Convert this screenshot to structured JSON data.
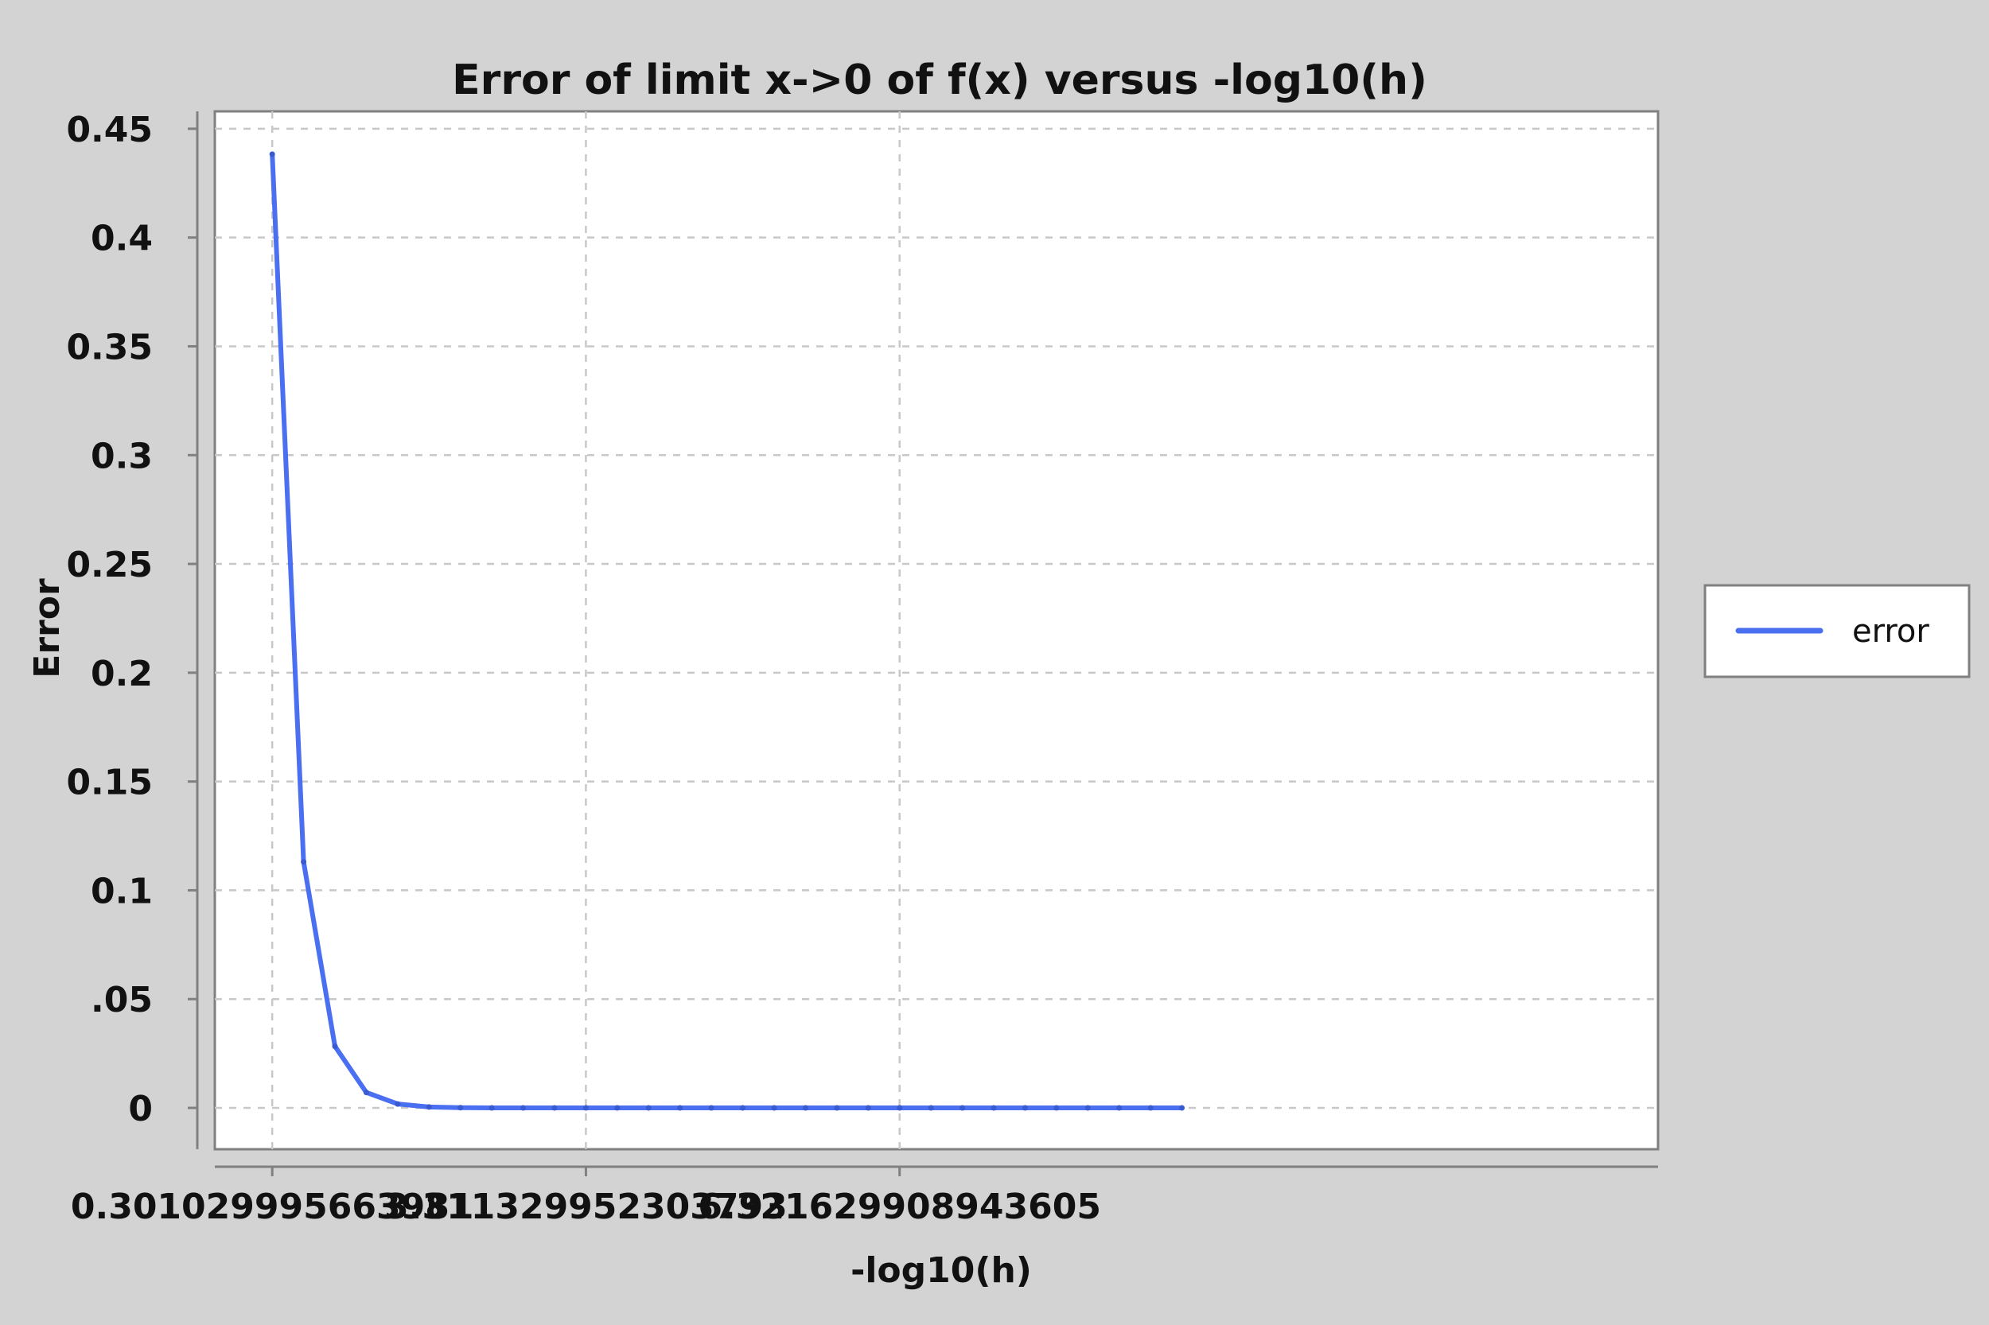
{
  "chart_data": {
    "type": "line",
    "title": "Error of limit x->0 of f(x) versus -log10(h)",
    "xlabel": "-log10(h)",
    "ylabel": "Error",
    "xlim": [
      -0.25,
      13.6
    ],
    "ylim": [
      -0.019,
      0.458
    ],
    "x_ticks": [
      0.301029995663981,
      3.311329952303793,
      6.321629908943605
    ],
    "x_tick_labels": [
      "0.301029995663981",
      "3.311329952303793",
      "6.321629908943605"
    ],
    "y_ticks": [
      0,
      0.05,
      0.1,
      0.15,
      0.2,
      0.25,
      0.3,
      0.35,
      0.4,
      0.45
    ],
    "y_tick_labels": [
      "0",
      ".05",
      "0.1",
      "0.15",
      "0.2",
      "0.25",
      "0.3",
      "0.35",
      "0.4",
      "0.45"
    ],
    "grid": true,
    "legend_position": "right",
    "series": [
      {
        "name": "error",
        "color": "#4a6ff0",
        "x": [
          0.301,
          0.602,
          0.903,
          1.204,
          1.505,
          1.806,
          2.107,
          2.408,
          2.709,
          3.01,
          3.311,
          3.612,
          3.913,
          4.214,
          4.515,
          4.816,
          5.118,
          5.419,
          5.72,
          6.021,
          6.322,
          6.623,
          6.924,
          7.225,
          7.526,
          7.827,
          8.128,
          8.429,
          8.73,
          9.031
        ],
        "y": [
          0.4383,
          0.1131,
          0.0283,
          0.0071,
          0.0018,
          0.0004,
          0.0001,
          0,
          0,
          0,
          0,
          0,
          0,
          0,
          0,
          0,
          0,
          0,
          0,
          0,
          0,
          0,
          0,
          0,
          0,
          0,
          0,
          0,
          0,
          0
        ]
      }
    ]
  }
}
